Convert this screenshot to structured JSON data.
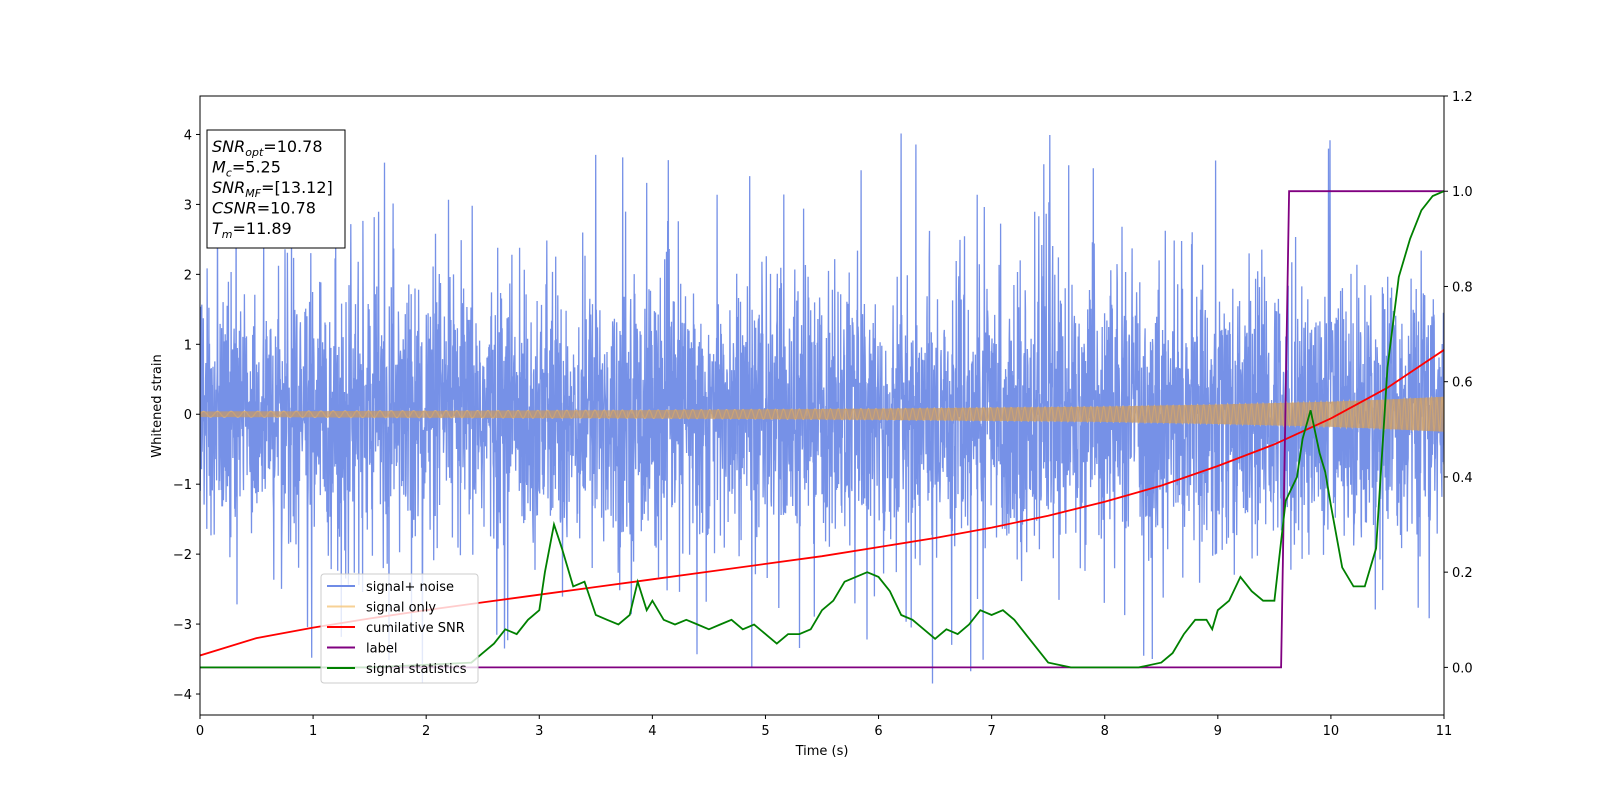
{
  "chart_data": {
    "type": "line",
    "xlabel": "Time (s)",
    "ylabel": "Whitened strain",
    "xlim": [
      0,
      11
    ],
    "ylim": [
      -4.3,
      4.55
    ],
    "y2lim": [
      -0.1,
      1.2
    ],
    "x_ticks": [
      "0",
      "1",
      "2",
      "3",
      "4",
      "5",
      "6",
      "7",
      "8",
      "9",
      "10",
      "11"
    ],
    "y_ticks": [
      "−4",
      "−3",
      "−2",
      "−1",
      "0",
      "1",
      "2",
      "3",
      "4"
    ],
    "y2_ticks": [
      "0.0",
      "0.2",
      "0.4",
      "0.6",
      "0.8",
      "1.0",
      "1.2"
    ],
    "info_box": {
      "lines": [
        {
          "base": "SNR",
          "sub": "opt",
          "value": "=10.78"
        },
        {
          "base": "M",
          "sub": "c",
          "value": "=5.25"
        },
        {
          "base": "SNR",
          "sub": "MF",
          "value": "=[13.12]"
        },
        {
          "base": "CSNR",
          "sub": "",
          "value": "=10.78"
        },
        {
          "base": "T",
          "sub": "m",
          "value": "=11.89"
        }
      ]
    },
    "legend": {
      "location": "lower-left",
      "entries": [
        "signal+ noise",
        "signal only",
        "cumilative SNR",
        "label",
        "signal statistics"
      ]
    },
    "series": [
      {
        "name": "signal+ noise",
        "color": "#6f8be6",
        "axis": "left",
        "description": "noise band roughly ±2.5 with spikes up to 4.15 and down to -3.85"
      },
      {
        "name": "signal only",
        "color": "#f5c57a",
        "axis": "left",
        "envelope_x": [
          0,
          2,
          4,
          6,
          8,
          9,
          10,
          10.5,
          11
        ],
        "envelope_y": [
          0.04,
          0.05,
          0.06,
          0.08,
          0.11,
          0.14,
          0.18,
          0.21,
          0.25
        ]
      },
      {
        "name": "cumilative SNR",
        "color": "#ff0000",
        "axis": "left",
        "x": [
          0,
          0.5,
          1,
          1.5,
          2,
          2.5,
          3,
          3.5,
          4,
          4.5,
          5,
          5.5,
          6,
          6.5,
          7,
          7.5,
          8,
          8.5,
          9,
          9.5,
          10,
          10.5,
          11
        ],
        "y": [
          -3.45,
          -3.2,
          -3.05,
          -2.92,
          -2.8,
          -2.69,
          -2.58,
          -2.47,
          -2.36,
          -2.25,
          -2.14,
          -2.03,
          -1.9,
          -1.77,
          -1.62,
          -1.45,
          -1.25,
          -1.02,
          -0.74,
          -0.43,
          -0.06,
          0.38,
          0.92
        ]
      },
      {
        "name": "label",
        "color": "#800080",
        "axis": "right",
        "x": [
          0,
          9.56,
          9.63,
          11
        ],
        "y": [
          0,
          0,
          1,
          1
        ]
      },
      {
        "name": "signal statistics",
        "color": "#008000",
        "axis": "right",
        "x": [
          0,
          1.5,
          2.4,
          2.5,
          2.6,
          2.7,
          2.8,
          2.9,
          3.0,
          3.05,
          3.13,
          3.2,
          3.3,
          3.4,
          3.5,
          3.6,
          3.7,
          3.8,
          3.87,
          3.95,
          4.0,
          4.1,
          4.2,
          4.3,
          4.4,
          4.5,
          4.6,
          4.7,
          4.8,
          4.9,
          5.0,
          5.1,
          5.2,
          5.3,
          5.4,
          5.5,
          5.6,
          5.7,
          5.8,
          5.9,
          6.0,
          6.1,
          6.2,
          6.3,
          6.4,
          6.5,
          6.6,
          6.7,
          6.8,
          6.9,
          7.0,
          7.1,
          7.2,
          7.3,
          7.4,
          7.5,
          7.7,
          8.0,
          8.3,
          8.5,
          8.6,
          8.7,
          8.8,
          8.9,
          8.95,
          9.0,
          9.1,
          9.2,
          9.3,
          9.4,
          9.5,
          9.6,
          9.7,
          9.75,
          9.82,
          9.9,
          9.95,
          10.0,
          10.1,
          10.2,
          10.3,
          10.4,
          10.5,
          10.6,
          10.7,
          10.8,
          10.9,
          11.0
        ],
        "y": [
          0,
          0,
          0.01,
          0.03,
          0.05,
          0.08,
          0.07,
          0.1,
          0.12,
          0.2,
          0.3,
          0.25,
          0.17,
          0.18,
          0.11,
          0.1,
          0.09,
          0.11,
          0.18,
          0.12,
          0.14,
          0.1,
          0.09,
          0.1,
          0.09,
          0.08,
          0.09,
          0.1,
          0.08,
          0.09,
          0.07,
          0.05,
          0.07,
          0.07,
          0.08,
          0.12,
          0.14,
          0.18,
          0.19,
          0.2,
          0.19,
          0.16,
          0.11,
          0.1,
          0.08,
          0.06,
          0.08,
          0.07,
          0.09,
          0.12,
          0.11,
          0.12,
          0.1,
          0.07,
          0.04,
          0.01,
          0.0,
          0.0,
          0.0,
          0.01,
          0.03,
          0.07,
          0.1,
          0.1,
          0.08,
          0.12,
          0.14,
          0.19,
          0.16,
          0.14,
          0.14,
          0.35,
          0.4,
          0.48,
          0.54,
          0.45,
          0.41,
          0.34,
          0.21,
          0.17,
          0.17,
          0.25,
          0.63,
          0.82,
          0.9,
          0.96,
          0.99,
          1.0
        ]
      }
    ]
  }
}
